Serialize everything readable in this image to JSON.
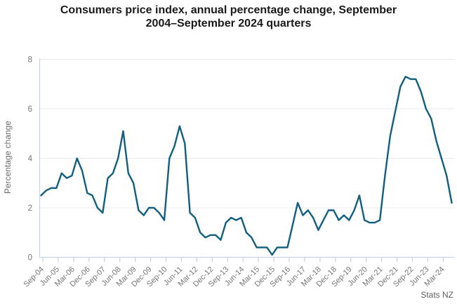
{
  "header": {
    "title": "Consumers price index, annual percentage change, September 2004–September 2024 quarters",
    "title_lines": [
      "Consumers price index, annual percentage change, September",
      "2004–September 2024 quarters"
    ]
  },
  "attribution": "Stats NZ",
  "colors": {
    "line": "#115e7e",
    "grid": "#e9e9ed",
    "axis": "#c8d3e1",
    "tick_text": "#75767a",
    "axis_label_text": "#6b6c6f",
    "title_text": "#1a1a1a",
    "attribution_text": "#5f6062",
    "background": "#ffffff"
  },
  "chart_data": {
    "type": "line",
    "title": "Consumers price index, annual percentage change, September 2004–September 2024 quarters",
    "xlabel": "",
    "ylabel": "Percentage change",
    "ylim": [
      0,
      8
    ],
    "yticks": [
      0,
      2,
      4,
      6,
      8
    ],
    "x_tick_step": 3,
    "grid": true,
    "legend_position": "none",
    "attribution": "Stats NZ",
    "x": [
      "Sep-04",
      "Dec-04",
      "Mar-05",
      "Jun-05",
      "Sep-05",
      "Dec-05",
      "Mar-06",
      "Jun-06",
      "Sep-06",
      "Dec-06",
      "Mar-07",
      "Jun-07",
      "Sep-07",
      "Dec-07",
      "Mar-08",
      "Jun-08",
      "Sep-08",
      "Dec-08",
      "Mar-09",
      "Jun-09",
      "Sep-09",
      "Dec-09",
      "Mar-10",
      "Jun-10",
      "Sep-10",
      "Dec-10",
      "Mar-11",
      "Jun-11",
      "Sep-11",
      "Dec-11",
      "Mar-12",
      "Jun-12",
      "Sep-12",
      "Dec-12",
      "Mar-13",
      "Jun-13",
      "Sep-13",
      "Dec-13",
      "Mar-14",
      "Jun-14",
      "Sep-14",
      "Dec-14",
      "Mar-15",
      "Jun-15",
      "Sep-15",
      "Dec-15",
      "Mar-16",
      "Jun-16",
      "Sep-16",
      "Dec-16",
      "Mar-17",
      "Jun-17",
      "Sep-17",
      "Dec-17",
      "Mar-18",
      "Jun-18",
      "Sep-18",
      "Dec-18",
      "Mar-19",
      "Jun-19",
      "Sep-19",
      "Dec-19",
      "Mar-20",
      "Jun-20",
      "Sep-20",
      "Dec-20",
      "Mar-21",
      "Jun-21",
      "Sep-21",
      "Dec-21",
      "Mar-22",
      "Jun-22",
      "Sep-22",
      "Dec-22",
      "Mar-23",
      "Jun-23",
      "Sep-23",
      "Dec-23",
      "Mar-24",
      "Jun-24",
      "Sep-24"
    ],
    "series": [
      {
        "name": "CPI annual percentage change",
        "values": [
          2.5,
          2.7,
          2.8,
          2.8,
          3.4,
          3.2,
          3.3,
          4.0,
          3.5,
          2.6,
          2.5,
          2.0,
          1.8,
          3.2,
          3.4,
          4.0,
          5.1,
          3.4,
          3.0,
          1.9,
          1.7,
          2.0,
          2.0,
          1.8,
          1.5,
          4.0,
          4.5,
          5.3,
          4.6,
          1.8,
          1.6,
          1.0,
          0.8,
          0.9,
          0.9,
          0.7,
          1.4,
          1.6,
          1.5,
          1.6,
          1.0,
          0.8,
          0.4,
          0.4,
          0.4,
          0.1,
          0.4,
          0.4,
          0.4,
          1.3,
          2.2,
          1.7,
          1.9,
          1.6,
          1.1,
          1.5,
          1.9,
          1.9,
          1.5,
          1.7,
          1.5,
          1.9,
          2.5,
          1.5,
          1.4,
          1.4,
          1.5,
          3.3,
          4.9,
          5.9,
          6.9,
          7.3,
          7.2,
          7.2,
          6.7,
          6.0,
          5.6,
          4.7,
          4.0,
          3.3,
          2.2
        ]
      }
    ]
  }
}
